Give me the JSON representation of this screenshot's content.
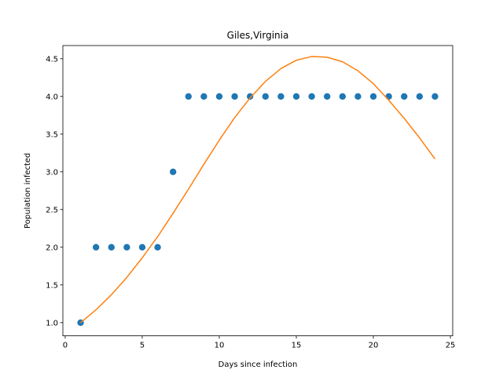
{
  "chart_data": {
    "type": "scatter",
    "title": "Giles,Virginia",
    "xlabel": "Days since infection",
    "ylabel": "Population infected",
    "xlim": [
      -0.15,
      25.15
    ],
    "ylim": [
      0.825,
      4.675
    ],
    "xticks": [
      0,
      5,
      10,
      15,
      20,
      25
    ],
    "xtick_labels": [
      "0",
      "5",
      "10",
      "15",
      "20",
      "25"
    ],
    "yticks": [
      1.0,
      1.5,
      2.0,
      2.5,
      3.0,
      3.5,
      4.0,
      4.5
    ],
    "ytick_labels": [
      "1.0",
      "1.5",
      "2.0",
      "2.5",
      "3.0",
      "3.5",
      "4.0",
      "4.5"
    ],
    "grid": false,
    "series": [
      {
        "kind": "scatter",
        "color": "#1f77b4",
        "x": [
          1,
          2,
          3,
          4,
          5,
          6,
          7,
          8,
          9,
          10,
          11,
          12,
          13,
          14,
          15,
          16,
          17,
          18,
          19,
          20,
          21,
          22,
          23,
          24
        ],
        "y": [
          1,
          2,
          2,
          2,
          2,
          2,
          3,
          4,
          4,
          4,
          4,
          4,
          4,
          4,
          4,
          4,
          4,
          4,
          4,
          4,
          4,
          4,
          4,
          4
        ]
      },
      {
        "kind": "line",
        "color": "#ff7f0e",
        "x": [
          1,
          2,
          3,
          4,
          5,
          6,
          7,
          8,
          9,
          10,
          11,
          12,
          13,
          14,
          15,
          16,
          17,
          18,
          19,
          20,
          21,
          22,
          23,
          24
        ],
        "y": [
          1.0,
          1.17,
          1.37,
          1.6,
          1.86,
          2.14,
          2.45,
          2.77,
          3.1,
          3.42,
          3.72,
          3.98,
          4.2,
          4.37,
          4.48,
          4.53,
          4.52,
          4.46,
          4.34,
          4.17,
          3.95,
          3.71,
          3.45,
          3.17
        ]
      }
    ]
  }
}
